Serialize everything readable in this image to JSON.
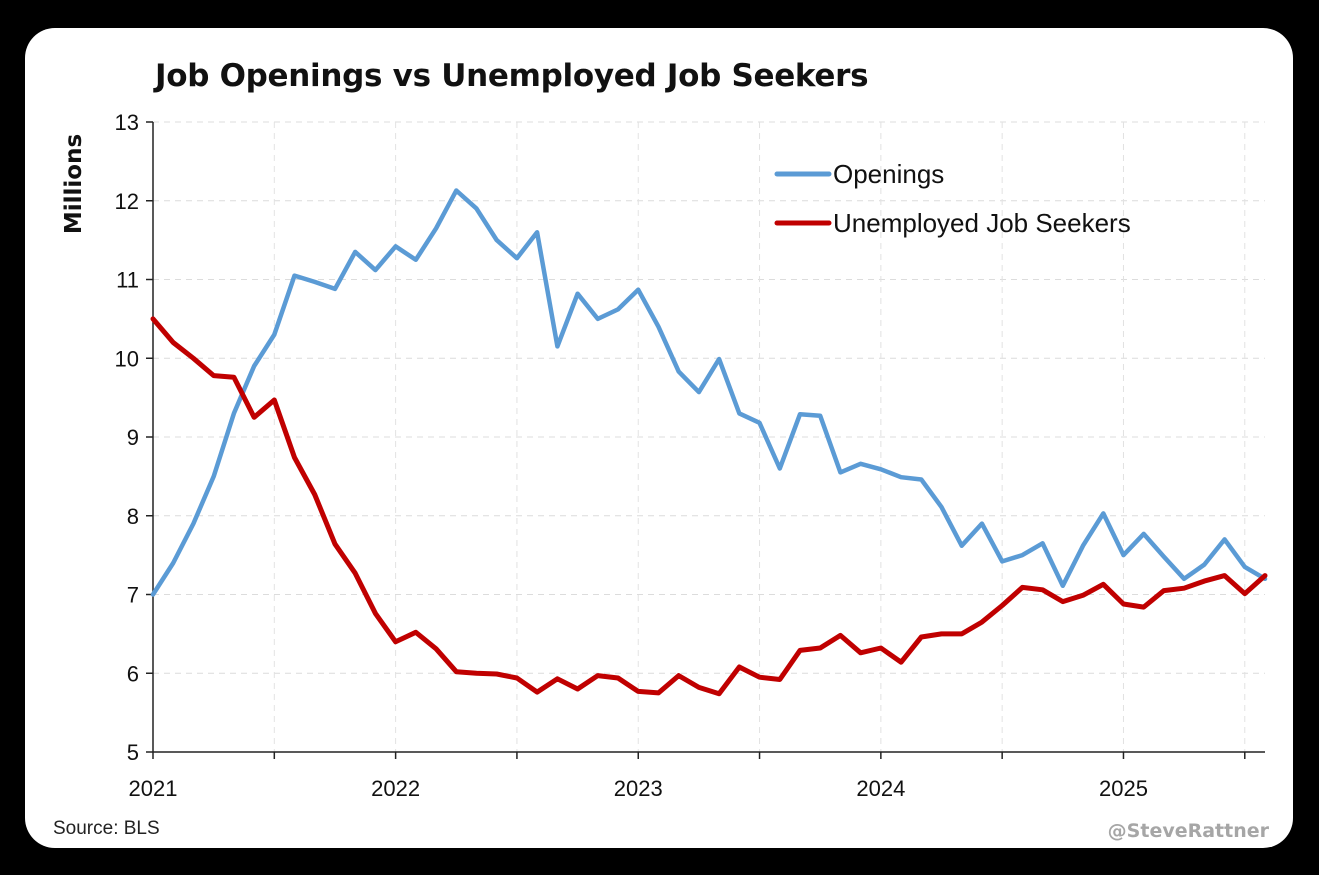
{
  "chart_data": {
    "type": "line",
    "title": "Job Openings vs Unemployed Job Seekers",
    "ylabel": "Millions",
    "xlabel": "",
    "ylim": [
      5,
      13
    ],
    "yticks": [
      5,
      6,
      7,
      8,
      9,
      10,
      11,
      12,
      13
    ],
    "xlim": [
      "2021-01",
      "2025-08"
    ],
    "xticks": [
      "2021",
      "2022",
      "2023",
      "2024",
      "2025"
    ],
    "grid": true,
    "legend_position": "top-right",
    "x": [
      "2021-01",
      "2021-02",
      "2021-03",
      "2021-04",
      "2021-05",
      "2021-06",
      "2021-07",
      "2021-08",
      "2021-09",
      "2021-10",
      "2021-11",
      "2021-12",
      "2022-01",
      "2022-02",
      "2022-03",
      "2022-04",
      "2022-05",
      "2022-06",
      "2022-07",
      "2022-08",
      "2022-09",
      "2022-10",
      "2022-11",
      "2022-12",
      "2023-01",
      "2023-02",
      "2023-03",
      "2023-04",
      "2023-05",
      "2023-06",
      "2023-07",
      "2023-08",
      "2023-09",
      "2023-10",
      "2023-11",
      "2023-12",
      "2024-01",
      "2024-02",
      "2024-03",
      "2024-04",
      "2024-05",
      "2024-06",
      "2024-07",
      "2024-08",
      "2024-09",
      "2024-10",
      "2024-11",
      "2024-12",
      "2025-01",
      "2025-02",
      "2025-03",
      "2025-04",
      "2025-05",
      "2025-06",
      "2025-07",
      "2025-08"
    ],
    "series": [
      {
        "name": "Openings",
        "color": "#5b9bd5",
        "values": [
          7.0,
          7.4,
          7.9,
          8.5,
          9.3,
          9.9,
          10.3,
          11.05,
          10.97,
          10.88,
          11.35,
          11.12,
          11.42,
          11.25,
          11.65,
          12.13,
          11.9,
          11.5,
          11.27,
          11.6,
          10.15,
          10.82,
          10.5,
          10.62,
          10.87,
          10.4,
          9.83,
          9.57,
          9.99,
          9.3,
          9.18,
          8.6,
          9.29,
          9.27,
          8.55,
          8.66,
          8.59,
          8.49,
          8.46,
          8.11,
          7.62,
          7.9,
          7.42,
          7.5,
          7.65,
          7.11,
          7.62,
          8.03,
          7.5,
          7.77,
          7.48,
          7.2,
          7.38,
          7.7,
          7.35,
          7.2
        ]
      },
      {
        "name": "Unemployed Job Seekers",
        "color": "#c00000",
        "values": [
          10.5,
          10.2,
          10.0,
          9.78,
          9.76,
          9.25,
          9.47,
          8.74,
          8.27,
          7.64,
          7.27,
          6.76,
          6.4,
          6.52,
          6.31,
          6.02,
          6.0,
          5.99,
          5.94,
          5.76,
          5.93,
          5.8,
          5.97,
          5.94,
          5.77,
          5.75,
          5.97,
          5.82,
          5.74,
          6.08,
          5.95,
          5.92,
          6.29,
          6.32,
          6.48,
          6.26,
          6.32,
          6.14,
          6.46,
          6.5,
          6.5,
          6.65,
          6.86,
          7.09,
          7.06,
          6.91,
          6.99,
          7.13,
          6.88,
          6.84,
          7.05,
          7.08,
          7.17,
          7.24,
          7.01,
          7.24
        ]
      }
    ]
  },
  "footer": {
    "source": "Source: BLS",
    "credit": "@SteveRattner"
  }
}
